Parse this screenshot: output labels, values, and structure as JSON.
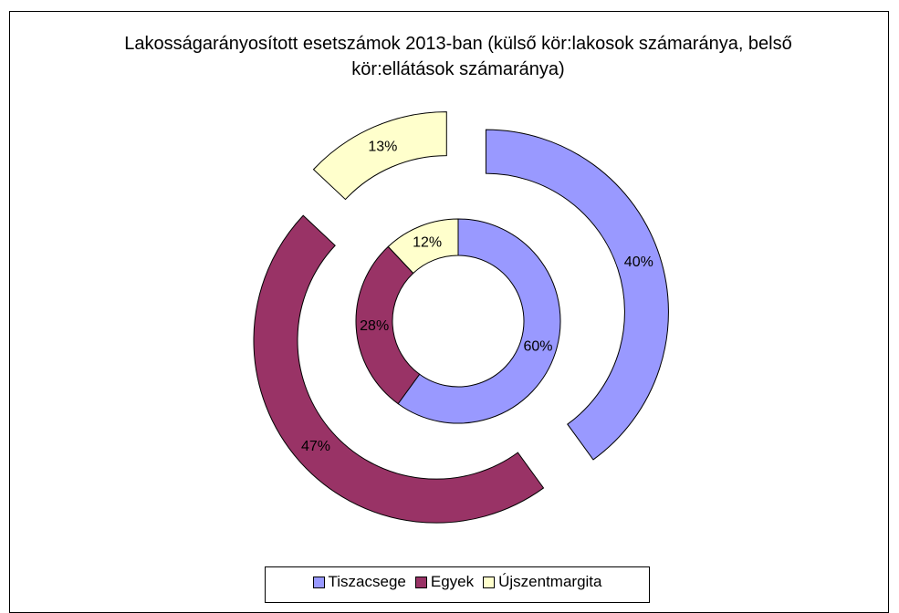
{
  "chart_data": {
    "type": "doughnut",
    "title": "Lakosságarányosított esetszámok 2013-ban (külső kör:lakosok számaránya, belső kör:ellátások számaránya)",
    "categories": [
      "Tiszacsege",
      "Egyek",
      "Újszentmargita"
    ],
    "colors": [
      "#9999ff",
      "#993366",
      "#ffffcc"
    ],
    "rings": [
      {
        "values": [
          40,
          47,
          13
        ],
        "value_labels": [
          "40%",
          "47%",
          "13%"
        ]
      },
      {
        "values": [
          60,
          28,
          12
        ],
        "value_labels": [
          "60%",
          "28%",
          "12%"
        ]
      }
    ]
  }
}
